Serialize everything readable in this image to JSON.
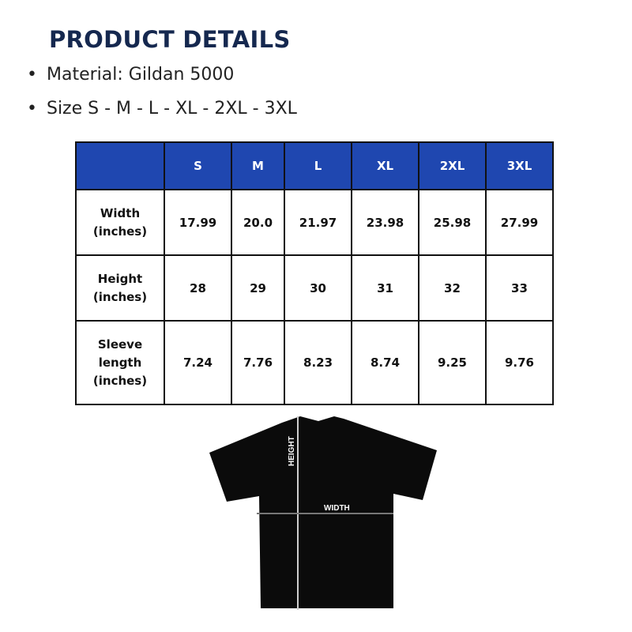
{
  "title": "PRODUCT DETAILS",
  "bullets": [
    "Material: Gildan 5000",
    "Size S - M - L - XL - 2XL - 3XL"
  ],
  "table": {
    "header_color": "#1f47b0",
    "columns": [
      "",
      "S",
      "M",
      "L",
      "XL",
      "2XL",
      "3XL"
    ],
    "rows": [
      {
        "label": "Width\n(inches)",
        "values": [
          "17.99",
          "20.0",
          "21.97",
          "23.98",
          "25.98",
          "27.99"
        ]
      },
      {
        "label": "Height\n(inches)",
        "values": [
          "28",
          "29",
          "30",
          "31",
          "32",
          "33"
        ]
      },
      {
        "label": "Sleeve\nlength\n(inches)",
        "values": [
          "7.24",
          "7.76",
          "8.23",
          "8.74",
          "9.25",
          "9.76"
        ]
      }
    ]
  },
  "diagram": {
    "height_label": "HEIGHT",
    "width_label": "WIDTH"
  }
}
